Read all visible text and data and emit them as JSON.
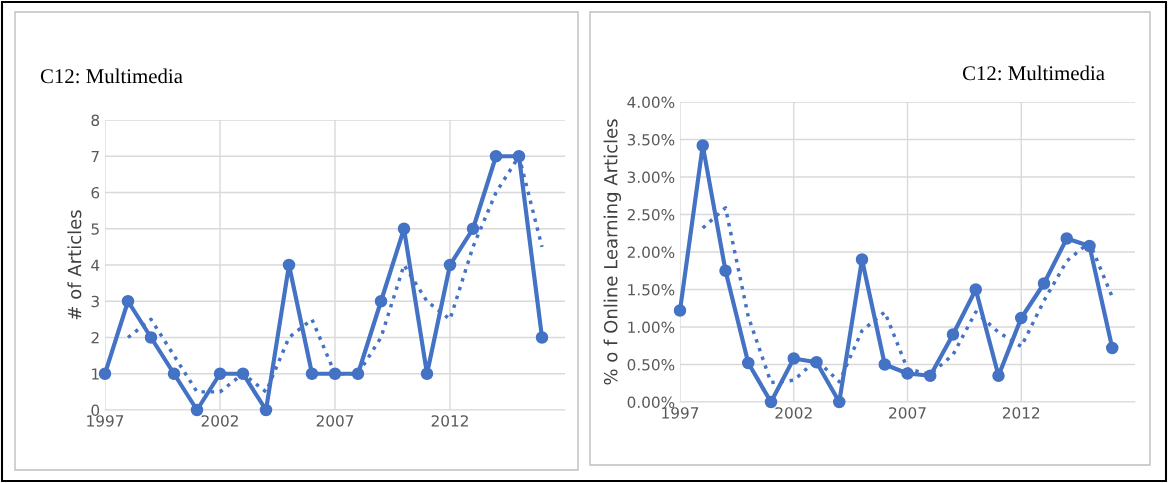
{
  "chart_data": [
    {
      "type": "line",
      "title": "C12: Multimedia",
      "ylabel": "# of Articles",
      "x": [
        1997,
        1998,
        1999,
        2000,
        2001,
        2002,
        2003,
        2004,
        2005,
        2006,
        2007,
        2008,
        2009,
        2010,
        2011,
        2012,
        2013,
        2014,
        2015,
        2016
      ],
      "series": [
        {
          "color": "#4472c4",
          "marker": "circle",
          "line_style": "solid",
          "values": [
            1,
            3,
            2,
            1,
            0,
            1,
            1,
            0,
            4,
            1,
            1,
            1,
            3,
            5,
            1,
            4,
            5,
            7,
            7,
            2
          ]
        },
        {
          "type": "line",
          "color": "#4472c4",
          "marker": "none",
          "line_style": "dotted",
          "x": [
            1998,
            1999,
            2000,
            2001,
            2002,
            2003,
            2004,
            2005,
            2006,
            2007,
            2008,
            2009,
            2010,
            2011,
            2012,
            2013,
            2014,
            2015,
            2016
          ],
          "values": [
            2,
            2.5,
            1.5,
            0.5,
            0.5,
            1,
            0.5,
            2,
            2.5,
            1,
            1,
            2,
            4,
            3,
            2.5,
            4.5,
            6,
            7,
            4.5
          ]
        }
      ],
      "xlim": [
        1997,
        2017
      ],
      "xticks": [
        1997,
        2002,
        2007,
        2012
      ],
      "ylim": [
        0,
        8
      ],
      "yticks": [
        0,
        1,
        2,
        3,
        4,
        5,
        6,
        7,
        8
      ],
      "grid": true
    },
    {
      "type": "line",
      "title": "C12: Multimedia",
      "ylabel": "% o f Online Learning Articles",
      "x": [
        1997,
        1998,
        1999,
        2000,
        2001,
        2002,
        2003,
        2004,
        2005,
        2006,
        2007,
        2008,
        2009,
        2010,
        2011,
        2012,
        2013,
        2014,
        2015,
        2016
      ],
      "series": [
        {
          "color": "#4472c4",
          "marker": "circle",
          "line_style": "solid",
          "values": [
            1.22,
            3.42,
            1.75,
            0.52,
            0.0,
            0.58,
            0.53,
            0.0,
            1.9,
            0.5,
            0.38,
            0.35,
            0.9,
            1.5,
            0.35,
            1.12,
            1.58,
            2.18,
            2.08,
            0.72
          ]
        },
        {
          "type": "line",
          "color": "#4472c4",
          "marker": "none",
          "line_style": "dotted",
          "x": [
            1998,
            1999,
            2000,
            2001,
            2002,
            2003,
            2004,
            2005,
            2006,
            2007,
            2008,
            2009,
            2010,
            2011,
            2012,
            2013,
            2014,
            2015,
            2016
          ],
          "values": [
            2.32,
            2.59,
            1.14,
            0.26,
            0.29,
            0.56,
            0.27,
            0.95,
            1.2,
            0.44,
            0.37,
            0.63,
            1.2,
            0.93,
            0.74,
            1.35,
            1.88,
            2.13,
            1.4
          ]
        }
      ],
      "xlim": [
        1997,
        2017
      ],
      "xticks": [
        1997,
        2002,
        2007,
        2012
      ],
      "ylim": [
        0,
        4
      ],
      "yticks": [
        {
          "value": 0,
          "label": "0.00%"
        },
        {
          "value": 0.5,
          "label": "0.50%"
        },
        {
          "value": 1,
          "label": "1.00%"
        },
        {
          "value": 1.5,
          "label": "1.50%"
        },
        {
          "value": 2,
          "label": "2.00%"
        },
        {
          "value": 2.5,
          "label": "2.50%"
        },
        {
          "value": 3,
          "label": "3.00%"
        },
        {
          "value": 3.5,
          "label": "3.50%"
        },
        {
          "value": 4,
          "label": "4.00%"
        }
      ],
      "grid": true
    }
  ]
}
